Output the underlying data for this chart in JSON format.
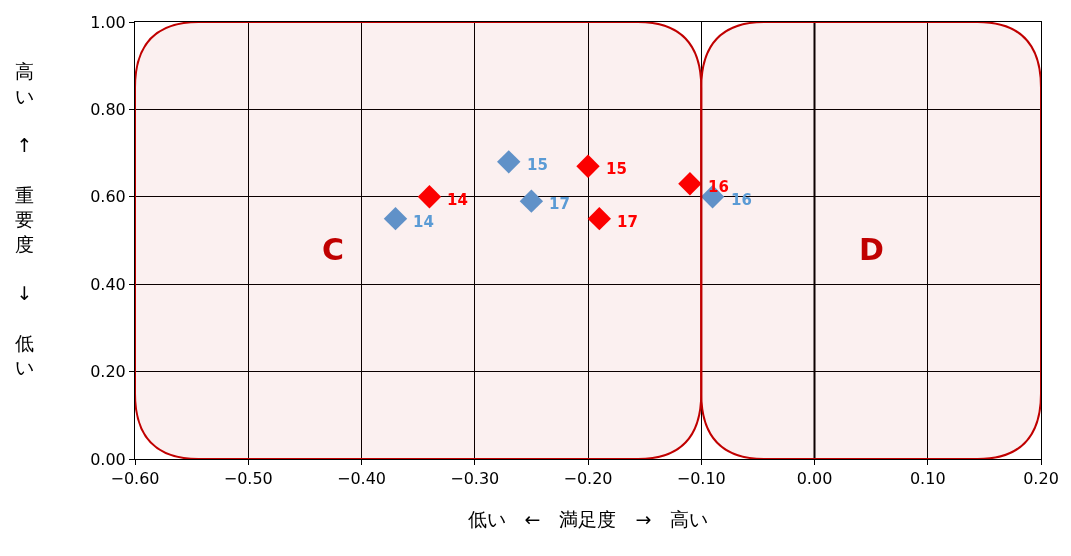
{
  "chart_data": {
    "type": "scatter",
    "xlabel": "低い　←　満足度　→　高い",
    "ylabel": "高い ↑ 重要度 ↓ 低い",
    "series": [
      {
        "color": "#5b9bd5",
        "x": [
          -0.37,
          -0.27,
          -0.09,
          -0.25
        ],
        "values": [
          0.55,
          0.68,
          0.6,
          0.59
        ]
      },
      {
        "color": "#ff0000",
        "x": [
          -0.34,
          -0.2,
          -0.11,
          -0.19
        ],
        "values": [
          0.6,
          0.67,
          0.63,
          0.55
        ]
      }
    ],
    "annotations": [
      {
        "text": "14",
        "x": -0.37,
        "y": 0.55
      },
      {
        "text": "15",
        "x": -0.27,
        "y": 0.68
      },
      {
        "text": "16",
        "x": -0.09,
        "y": 0.6
      },
      {
        "text": "17",
        "x": -0.25,
        "y": 0.59
      },
      {
        "text": "14",
        "x": -0.34,
        "y": 0.6
      },
      {
        "text": "15",
        "x": -0.2,
        "y": 0.67
      },
      {
        "text": "16",
        "x": -0.11,
        "y": 0.63
      },
      {
        "text": "17",
        "x": -0.19,
        "y": 0.55
      }
    ],
    "marker": "diamond",
    "grid": true,
    "xlim": [
      -0.6,
      0.2
    ],
    "ylim": [
      0,
      1
    ],
    "xticks": [
      {
        "value": -0.6,
        "label": "−0.60"
      },
      {
        "value": -0.5,
        "label": "−0.50"
      },
      {
        "value": -0.4,
        "label": "−0.40"
      },
      {
        "value": -0.3,
        "label": "−0.30"
      },
      {
        "value": -0.2,
        "label": "−0.20"
      },
      {
        "value": -0.1,
        "label": "−0.10"
      },
      {
        "value": 0,
        "label": "0.00"
      },
      {
        "value": 0.1,
        "label": "0.10"
      },
      {
        "value": 0.2,
        "label": "0.20"
      }
    ],
    "yticks": [
      {
        "value": 0,
        "label": "0.00"
      },
      {
        "value": 0.2,
        "label": "0.20"
      },
      {
        "value": 0.4,
        "label": "0.40"
      },
      {
        "value": 0.6,
        "label": "0.60"
      },
      {
        "value": 0.8,
        "label": "0.80"
      },
      {
        "value": 1,
        "label": "1.00"
      }
    ],
    "ref_lines": [
      {
        "axis": "x",
        "value": 0,
        "color": "#000000"
      }
    ],
    "bands": [
      {
        "axis": "x",
        "from": -0.6,
        "to": -0.1,
        "label": "C",
        "color": "#c00000"
      },
      {
        "axis": "x",
        "from": -0.1,
        "to": 0.2,
        "label": "D",
        "color": "#c00000"
      }
    ]
  }
}
